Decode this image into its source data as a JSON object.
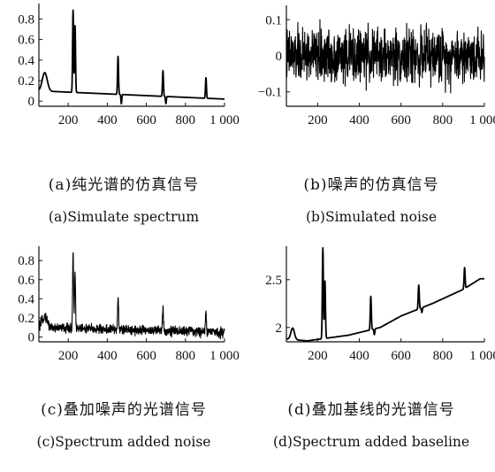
{
  "chart_data": [
    {
      "id": "a",
      "type": "line",
      "caption_cn": "(a)纯光谱的仿真信号",
      "caption_en": "(a)Simulate spectrum",
      "xlim": [
        50,
        1000
      ],
      "ylim": [
        -0.05,
        0.95
      ],
      "xticks": [
        200,
        400,
        600,
        800,
        1000
      ],
      "xtick_labels": [
        "200",
        "400",
        "600",
        "800",
        "1 000"
      ],
      "yticks": [
        0,
        0.2,
        0.4,
        0.6,
        0.8
      ],
      "ytick_labels": [
        "0",
        "0.2",
        "0.4",
        "0.6",
        "0.8"
      ],
      "baseline": [
        [
          50,
          0.1
        ],
        [
          1000,
          0.02
        ]
      ],
      "peaks": [
        {
          "x": 80,
          "height": 0.18,
          "width": 18
        },
        {
          "x": 225,
          "height": 0.8,
          "width": 3.5
        },
        {
          "x": 235,
          "height": 0.65,
          "width": 3.5
        },
        {
          "x": 455,
          "height": 0.37,
          "width": 3.5
        },
        {
          "x": 685,
          "height": 0.25,
          "width": 3.5
        },
        {
          "x": 905,
          "height": 0.2,
          "width": 3.5
        }
      ],
      "dips": [
        {
          "x": 472,
          "depth": 0.09,
          "width": 3
        },
        {
          "x": 700,
          "depth": 0.07,
          "width": 3
        }
      ],
      "noise": 0
    },
    {
      "id": "b",
      "type": "line",
      "caption_cn": "(b)噪声的仿真信号",
      "caption_en": "(b)Simulated noise",
      "xlim": [
        50,
        1000
      ],
      "ylim": [
        -0.14,
        0.14
      ],
      "xticks": [
        200,
        400,
        600,
        800,
        1000
      ],
      "xtick_labels": [
        "200",
        "400",
        "600",
        "800",
        "1 000"
      ],
      "yticks": [
        -0.1,
        0,
        0.1
      ],
      "ytick_labels": [
        "−0.1",
        "0",
        "0.1"
      ],
      "baseline": [
        [
          50,
          0
        ],
        [
          1000,
          0
        ]
      ],
      "peaks": [],
      "dips": [],
      "noise": 0.11
    },
    {
      "id": "c",
      "type": "line",
      "caption_cn": "(c)叠加噪声的光谱信号",
      "caption_en": "(c)Spectrum added noise",
      "xlim": [
        50,
        1000
      ],
      "ylim": [
        -0.05,
        0.95
      ],
      "xticks": [
        200,
        400,
        600,
        800,
        1000
      ],
      "xtick_labels": [
        "200",
        "400",
        "600",
        "800",
        "1 000"
      ],
      "yticks": [
        0,
        0.2,
        0.4,
        0.6,
        0.8
      ],
      "ytick_labels": [
        "0",
        "0.2",
        "0.4",
        "0.6",
        "0.8"
      ],
      "baseline": [
        [
          50,
          0.1
        ],
        [
          1000,
          0.05
        ]
      ],
      "peaks": [
        {
          "x": 80,
          "height": 0.12,
          "width": 18
        },
        {
          "x": 225,
          "height": 0.8,
          "width": 3.5
        },
        {
          "x": 235,
          "height": 0.6,
          "width": 3.5
        },
        {
          "x": 455,
          "height": 0.33,
          "width": 3.5
        },
        {
          "x": 685,
          "height": 0.25,
          "width": 3.5
        },
        {
          "x": 905,
          "height": 0.2,
          "width": 3.5
        }
      ],
      "dips": [],
      "noise": 0.075
    },
    {
      "id": "d",
      "type": "line",
      "caption_cn": "(d)叠加基线的光谱信号",
      "caption_en": "(d)Spectrum added baseline",
      "xlim": [
        50,
        1000
      ],
      "ylim": [
        1.85,
        2.85
      ],
      "xticks": [
        200,
        400,
        600,
        800,
        1000
      ],
      "xtick_labels": [
        "200",
        "400",
        "600",
        "800",
        "1 000"
      ],
      "yticks": [
        2,
        2.5
      ],
      "ytick_labels": [
        "2",
        "2.5"
      ],
      "baseline": [
        [
          50,
          1.88
        ],
        [
          150,
          1.86
        ],
        [
          350,
          1.92
        ],
        [
          500,
          2.0
        ],
        [
          600,
          2.12
        ],
        [
          750,
          2.25
        ],
        [
          900,
          2.4
        ],
        [
          980,
          2.51
        ],
        [
          1000,
          2.51
        ]
      ],
      "peaks": [
        {
          "x": 80,
          "height": 0.12,
          "width": 12
        },
        {
          "x": 225,
          "height": 0.95,
          "width": 3.5
        },
        {
          "x": 235,
          "height": 0.6,
          "width": 3.5
        },
        {
          "x": 455,
          "height": 0.35,
          "width": 3.5
        },
        {
          "x": 685,
          "height": 0.25,
          "width": 3.5
        },
        {
          "x": 905,
          "height": 0.22,
          "width": 3.5
        }
      ],
      "dips": [
        {
          "x": 472,
          "depth": 0.06,
          "width": 3
        },
        {
          "x": 700,
          "depth": 0.05,
          "width": 3
        }
      ],
      "noise": 0
    }
  ]
}
